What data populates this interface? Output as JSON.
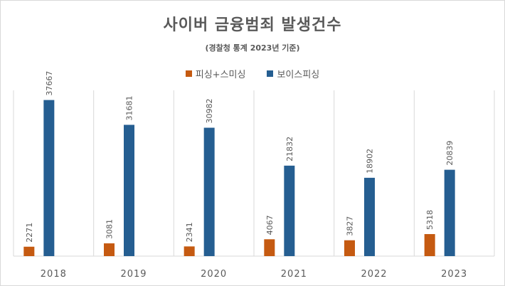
{
  "title": "사이버 금융범죄 발생건수",
  "subtitle": "(경찰청 통계 2023년 기준)",
  "colors": {
    "series1": "#c55a11",
    "series2": "#255e91",
    "grid": "#d9d9d9",
    "text": "#595959"
  },
  "chart_data": {
    "type": "bar",
    "categories": [
      "2018",
      "2019",
      "2020",
      "2021",
      "2022",
      "2023"
    ],
    "series": [
      {
        "name": "피싱+스미싱",
        "values": [
          2271,
          3081,
          2341,
          4067,
          3827,
          5318
        ]
      },
      {
        "name": "보이스피싱",
        "values": [
          37667,
          31681,
          30982,
          21832,
          18902,
          20839
        ]
      }
    ],
    "ylim": [
      0,
      40000
    ],
    "grid": "vertical category separators",
    "legend": "top-center",
    "data_labels": true
  }
}
